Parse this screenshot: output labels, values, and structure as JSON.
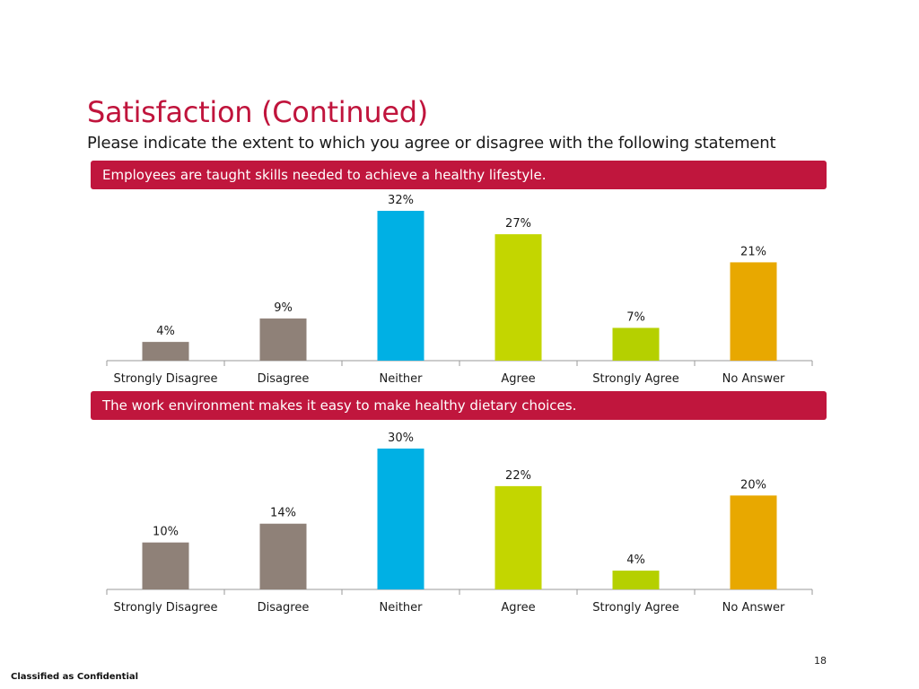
{
  "title": "Satisfaction (Continued)",
  "subtitle": "Please indicate the extent to which you agree or disagree with the following statement",
  "footer": {
    "page_number": "18",
    "classification": "Classified as Confidential"
  },
  "colors": {
    "accent": "#c0163d",
    "disagree": "#8f8178",
    "neither": "#00b0e4",
    "agree": "#c3d600",
    "strongly_agree": "#b5d000",
    "no_answer": "#e8a800"
  },
  "chart_data": [
    {
      "type": "bar",
      "title": "Employees are taught skills needed to achieve a healthy lifestyle.",
      "categories": [
        "Strongly Disagree",
        "Disagree",
        "Neither",
        "Agree",
        "Strongly Agree",
        "No Answer"
      ],
      "values": [
        4,
        9,
        32,
        27,
        7,
        21
      ],
      "value_labels": [
        "4%",
        "9%",
        "32%",
        "27%",
        "7%",
        "21%"
      ],
      "colors": [
        "#8f8178",
        "#8f8178",
        "#00b0e4",
        "#c3d600",
        "#b5d000",
        "#e8a800"
      ],
      "ylim": [
        0,
        32
      ],
      "grid": false,
      "legend": "none"
    },
    {
      "type": "bar",
      "title": "The work environment makes it easy to make healthy dietary choices.",
      "categories": [
        "Strongly Disagree",
        "Disagree",
        "Neither",
        "Agree",
        "Strongly Agree",
        "No Answer"
      ],
      "values": [
        10,
        14,
        30,
        22,
        4,
        20
      ],
      "value_labels": [
        "10%",
        "14%",
        "30%",
        "22%",
        "4%",
        "20%"
      ],
      "colors": [
        "#8f8178",
        "#8f8178",
        "#00b0e4",
        "#c3d600",
        "#b5d000",
        "#e8a800"
      ],
      "ylim": [
        0,
        30
      ],
      "grid": false,
      "legend": "none"
    }
  ]
}
